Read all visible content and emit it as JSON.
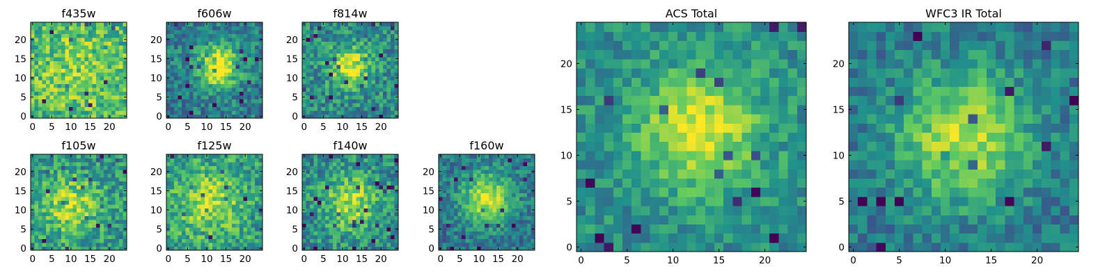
{
  "chart_data": [
    {
      "id": "f435w",
      "type": "heatmap",
      "title": "f435w",
      "grid_size": 25,
      "xticks": [
        "0",
        "5",
        "10",
        "15",
        "20"
      ],
      "yticks": [
        "0",
        "5",
        "10",
        "15",
        "20"
      ],
      "peak": [
        12,
        12
      ],
      "peak_sigma": 9,
      "peak_strength": 0.15,
      "base_level": 0.64,
      "noise": 0.46,
      "seed": 11
    },
    {
      "id": "f606w",
      "type": "heatmap",
      "title": "f606w",
      "grid_size": 25,
      "xticks": [
        "0",
        "5",
        "10",
        "15",
        "20"
      ],
      "yticks": [
        "0",
        "5",
        "10",
        "15",
        "20"
      ],
      "peak": [
        13,
        13
      ],
      "peak_sigma": 3.8,
      "peak_strength": 0.62,
      "base_level": 0.42,
      "noise": 0.38,
      "seed": 23
    },
    {
      "id": "f814w",
      "type": "heatmap",
      "title": "f814w",
      "grid_size": 25,
      "xticks": [
        "0",
        "5",
        "10",
        "15",
        "20"
      ],
      "yticks": [
        "0",
        "5",
        "10",
        "15",
        "20"
      ],
      "peak": [
        12,
        13
      ],
      "peak_sigma": 3.6,
      "peak_strength": 0.5,
      "base_level": 0.48,
      "noise": 0.42,
      "seed": 37
    },
    {
      "id": "f105w",
      "type": "heatmap",
      "title": "f105w",
      "grid_size": 25,
      "xticks": [
        "0",
        "5",
        "10",
        "15",
        "20"
      ],
      "yticks": [
        "0",
        "5",
        "10",
        "15",
        "20"
      ],
      "peak": [
        10,
        11
      ],
      "peak_sigma": 5.5,
      "peak_strength": 0.35,
      "base_level": 0.52,
      "noise": 0.42,
      "seed": 41
    },
    {
      "id": "f125w",
      "type": "heatmap",
      "title": "f125w",
      "grid_size": 25,
      "xticks": [
        "0",
        "5",
        "10",
        "15",
        "20"
      ],
      "yticks": [
        "0",
        "5",
        "10",
        "15",
        "20"
      ],
      "peak": [
        11,
        12
      ],
      "peak_sigma": 6,
      "peak_strength": 0.32,
      "base_level": 0.55,
      "noise": 0.42,
      "seed": 53
    },
    {
      "id": "f140w",
      "type": "heatmap",
      "title": "f140w",
      "grid_size": 25,
      "xticks": [
        "0",
        "5",
        "10",
        "15",
        "20"
      ],
      "yticks": [
        "0",
        "5",
        "10",
        "15",
        "20"
      ],
      "peak": [
        12,
        12
      ],
      "peak_sigma": 5,
      "peak_strength": 0.4,
      "base_level": 0.48,
      "noise": 0.42,
      "seed": 67
    },
    {
      "id": "f160w",
      "type": "heatmap",
      "title": "f160w",
      "grid_size": 25,
      "xticks": [
        "0",
        "5",
        "10",
        "15",
        "20"
      ],
      "yticks": [
        "0",
        "5",
        "10",
        "15",
        "20"
      ],
      "peak": [
        12,
        13
      ],
      "peak_sigma": 4.5,
      "peak_strength": 0.55,
      "base_level": 0.4,
      "noise": 0.34,
      "seed": 79
    },
    {
      "id": "acs_total",
      "type": "heatmap",
      "title": "ACS Total",
      "grid_size": 25,
      "xticks": [
        "0",
        "5",
        "10",
        "15",
        "20"
      ],
      "yticks": [
        "0",
        "5",
        "10",
        "15",
        "20"
      ],
      "peak": [
        13,
        13
      ],
      "peak_sigma": 4.5,
      "peak_strength": 0.45,
      "base_level": 0.5,
      "noise": 0.3,
      "seed": 91
    },
    {
      "id": "wfc3_ir_total",
      "type": "heatmap",
      "title": "WFC3 IR Total",
      "grid_size": 25,
      "xticks": [
        "0",
        "5",
        "10",
        "15",
        "20"
      ],
      "yticks": [
        "0",
        "5",
        "10",
        "15",
        "20"
      ],
      "peak": [
        12,
        12
      ],
      "peak_sigma": 5,
      "peak_strength": 0.5,
      "base_level": 0.4,
      "noise": 0.3,
      "seed": 103
    }
  ],
  "colormap": "viridis",
  "colormap_stops": [
    "#440154",
    "#3b528b",
    "#21918c",
    "#5ec962",
    "#fde725"
  ],
  "frame_color": "#000000"
}
